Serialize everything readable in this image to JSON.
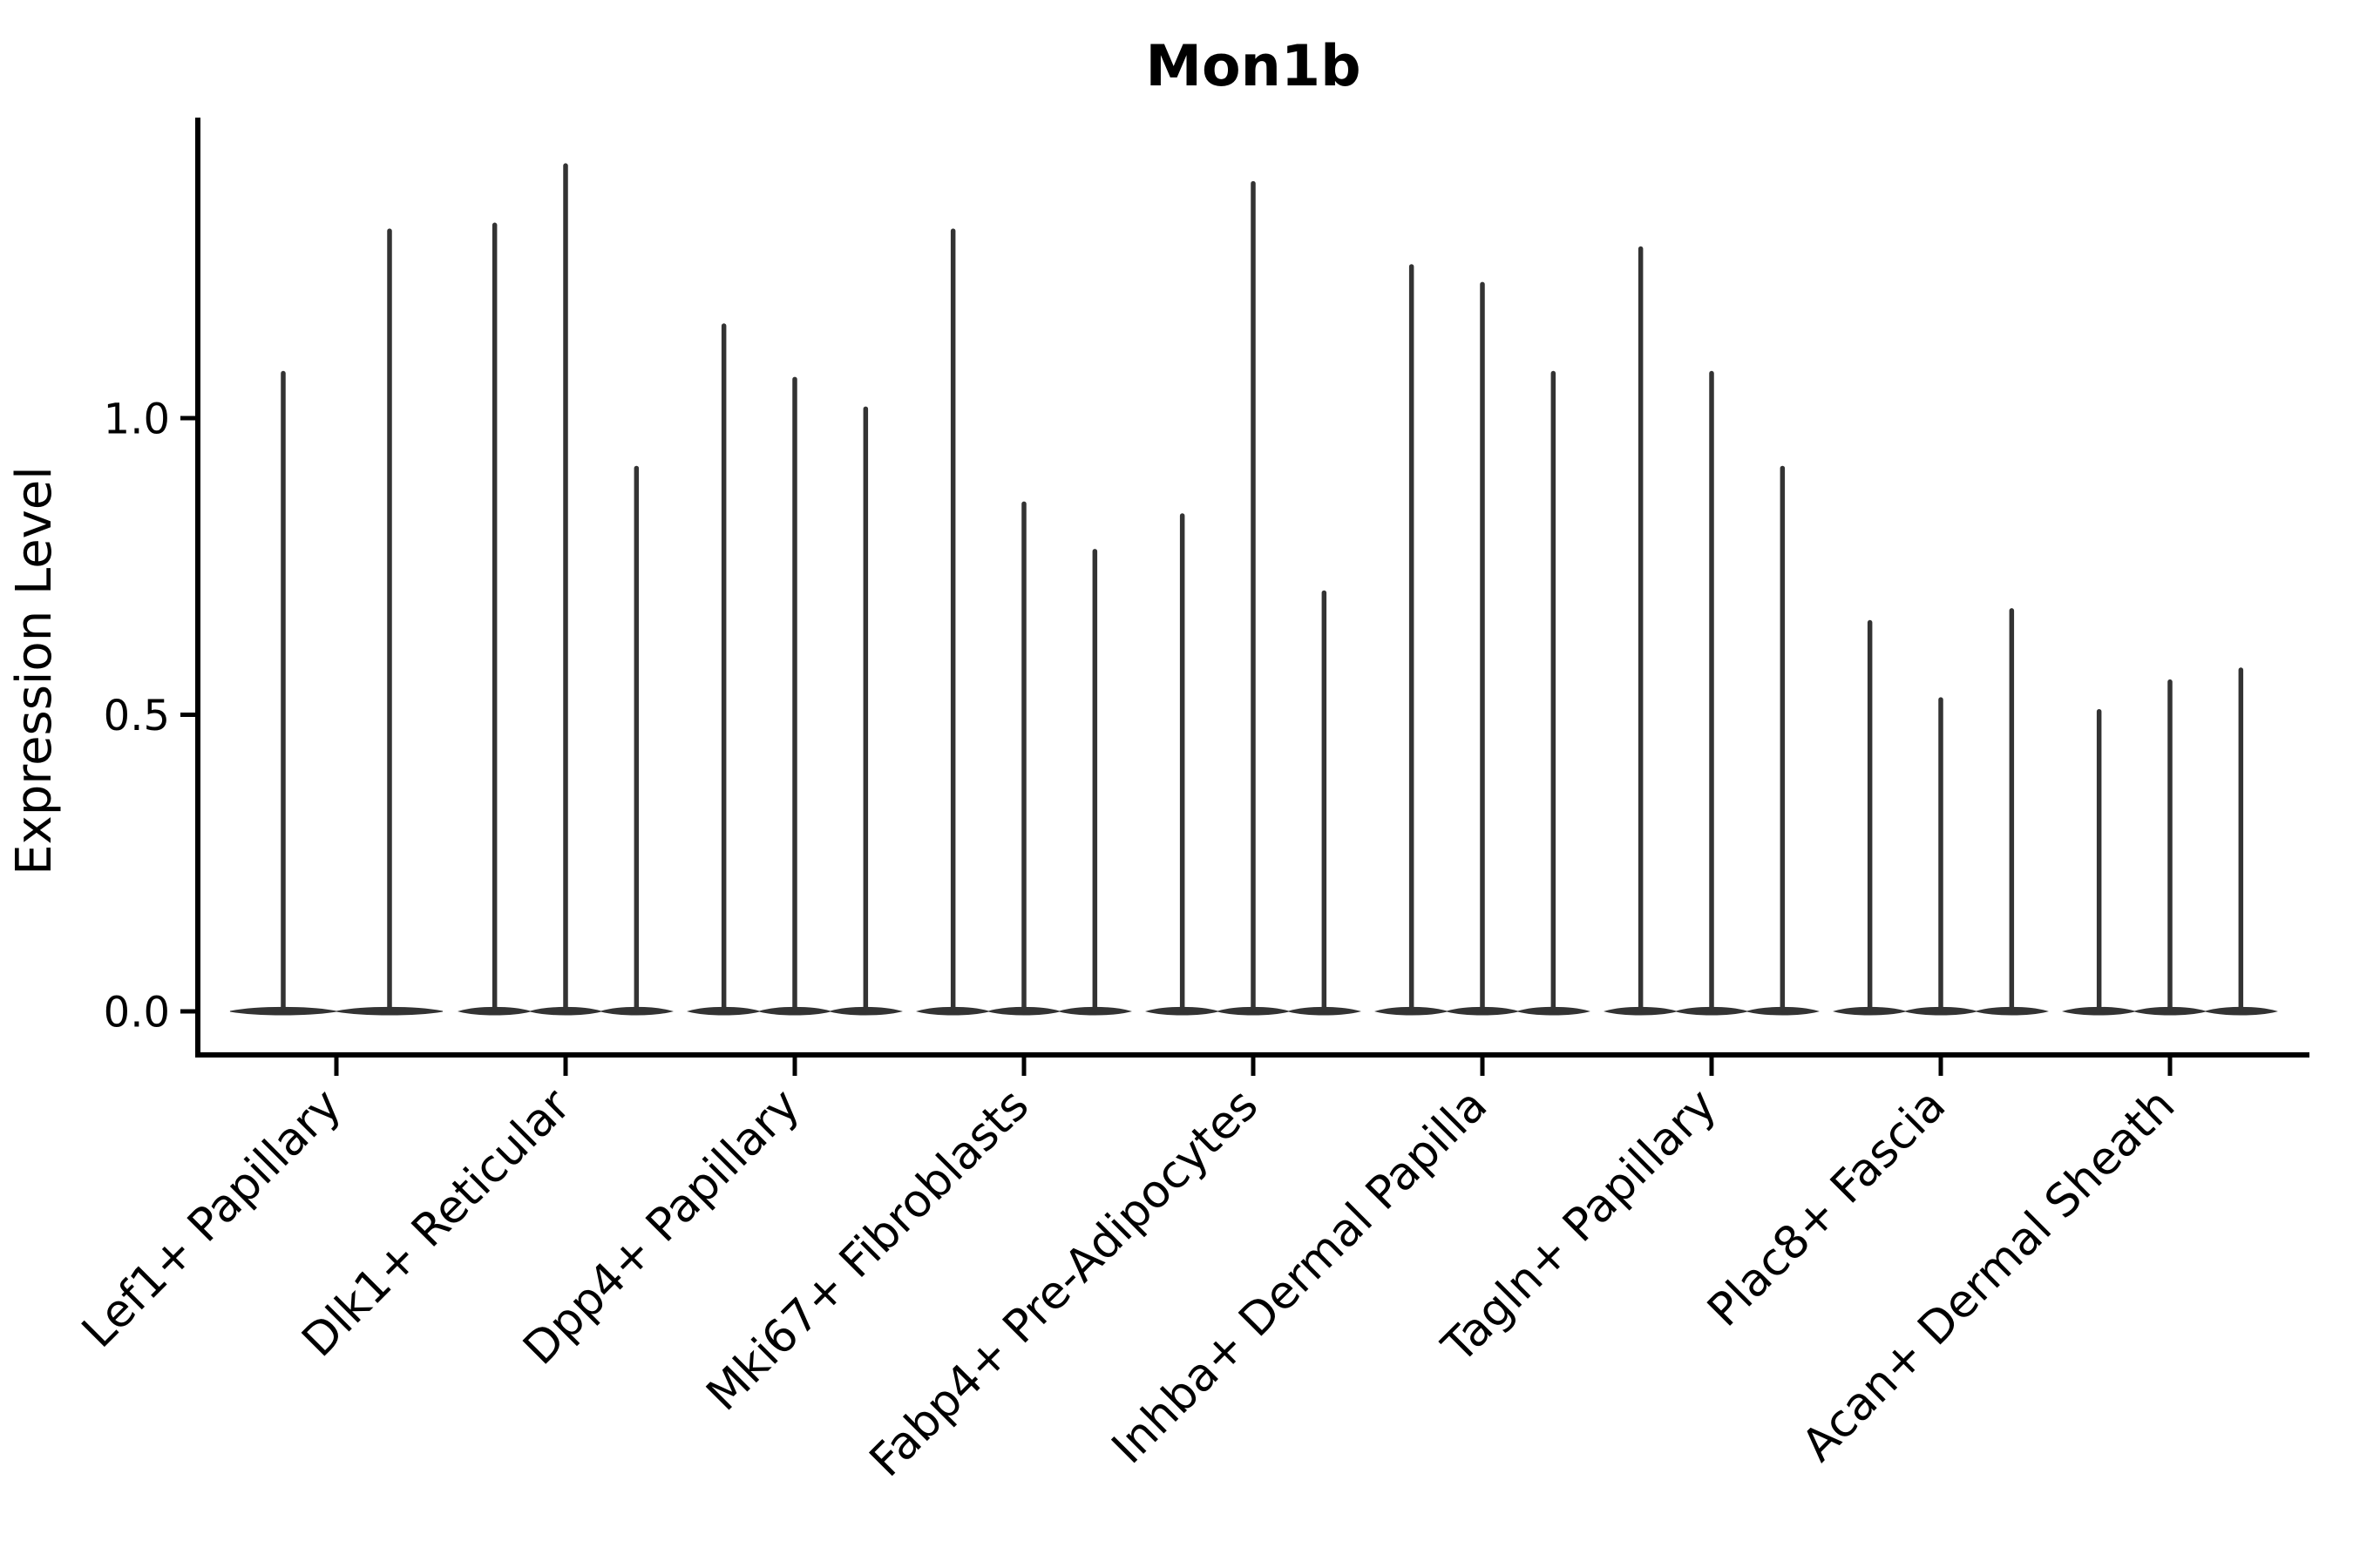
{
  "chart_data": {
    "type": "violin",
    "title": "Mon1b",
    "xlabel": "",
    "ylabel": "Expression Level",
    "yticks": [
      "0.0",
      "0.5",
      "1.0"
    ],
    "ytick_values": [
      0.0,
      0.5,
      1.0
    ],
    "ylim": [
      -0.07,
      1.51
    ],
    "grid": false,
    "legend": "none",
    "violin_color": "#333333",
    "axis_color": "#000000",
    "categories": [
      "Lef1+ Papillary",
      "Dlk1+ Reticular",
      "Dpp4+ Papillary",
      "Mki67+ Fibroblasts",
      "Fabp4+ Pre-Adipocytes",
      "Inhba+ Dermal Papilla",
      "Tagln+ Papillary",
      "Plac8+ Fascia",
      "Acan+ Dermal Sheath"
    ],
    "groups": [
      {
        "category": "Lef1+ Papillary",
        "violin_maxima": [
          1.08,
          1.32
        ]
      },
      {
        "category": "Dlk1+ Reticular",
        "violin_maxima": [
          1.33,
          1.43,
          0.92
        ]
      },
      {
        "category": "Dpp4+ Papillary",
        "violin_maxima": [
          1.16,
          1.07,
          1.02
        ]
      },
      {
        "category": "Mki67+ Fibroblasts",
        "violin_maxima": [
          1.32,
          0.86,
          0.78
        ]
      },
      {
        "category": "Fabp4+ Pre-Adipocytes",
        "violin_maxima": [
          0.84,
          1.4,
          0.71
        ]
      },
      {
        "category": "Inhba+ Dermal Papilla",
        "violin_maxima": [
          1.26,
          1.23,
          1.08
        ]
      },
      {
        "category": "Tagln+ Papillary",
        "violin_maxima": [
          1.29,
          1.08,
          0.92
        ]
      },
      {
        "category": "Plac8+ Fascia",
        "violin_maxima": [
          0.66,
          0.53,
          0.68
        ]
      },
      {
        "category": "Acan+ Dermal Sheath",
        "violin_maxima": [
          0.51,
          0.56,
          0.58
        ]
      }
    ]
  }
}
